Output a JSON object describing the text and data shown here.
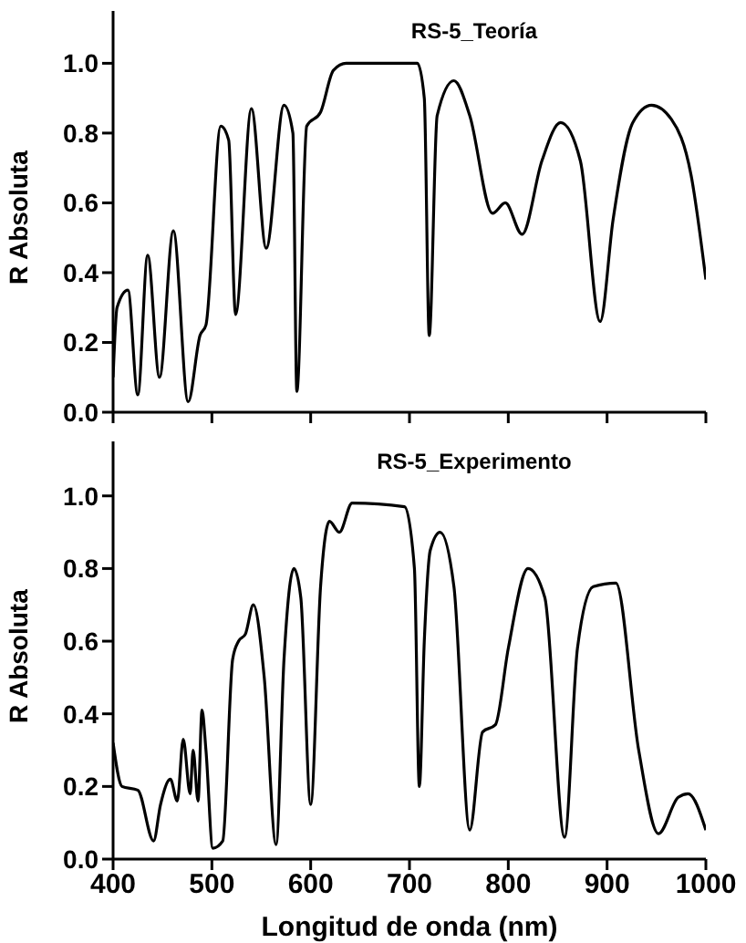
{
  "chart_data": [
    {
      "type": "line",
      "title": "RS-5_Teoría",
      "ylabel": "R Absoluta",
      "xlim": [
        400,
        1000
      ],
      "xticks": [
        400,
        500,
        600,
        700,
        800,
        900,
        1000
      ],
      "ylim": [
        0,
        1.15
      ],
      "yticks": [
        {
          "value": 0,
          "label": "0.0"
        },
        {
          "value": 0.2,
          "label": "0.2"
        },
        {
          "value": 0.4,
          "label": "0.4"
        },
        {
          "value": 0.6,
          "label": "0.6"
        },
        {
          "value": 0.8,
          "label": "0.8"
        },
        {
          "value": 1,
          "label": "1.0"
        }
      ],
      "tick_labels": "y",
      "grid": false,
      "legend": false,
      "marker": "none",
      "line_style": "solid",
      "series": [
        {
          "color": "#000000",
          "x": [
            400,
            404,
            415,
            425,
            435,
            447,
            461,
            476,
            488,
            494,
            509,
            517,
            524,
            540,
            555,
            573,
            582,
            586,
            596,
            610,
            623,
            636,
            708,
            715,
            720,
            728,
            745,
            761,
            784,
            797,
            814,
            834,
            853,
            873,
            893,
            906,
            926,
            945,
            965,
            985,
            1000
          ],
          "values": [
            0.1,
            0.3,
            0.35,
            0.05,
            0.45,
            0.1,
            0.52,
            0.03,
            0.22,
            0.25,
            0.82,
            0.78,
            0.28,
            0.87,
            0.47,
            0.88,
            0.8,
            0.06,
            0.82,
            0.86,
            0.98,
            1.0,
            1.0,
            0.9,
            0.22,
            0.85,
            0.95,
            0.85,
            0.57,
            0.6,
            0.51,
            0.72,
            0.83,
            0.72,
            0.26,
            0.55,
            0.83,
            0.88,
            0.84,
            0.68,
            0.38
          ]
        }
      ]
    },
    {
      "type": "line",
      "title": "RS-5_Experimento",
      "xlabel": "Longitud de onda (nm)",
      "ylabel": "R Absoluta",
      "xlim": [
        400,
        1000
      ],
      "xticks": [
        400,
        500,
        600,
        700,
        800,
        900,
        1000
      ],
      "ylim": [
        0,
        1.15
      ],
      "yticks": [
        {
          "value": 0,
          "label": "0.0"
        },
        {
          "value": 0.2,
          "label": "0.2"
        },
        {
          "value": 0.4,
          "label": "0.4"
        },
        {
          "value": 0.6,
          "label": "0.6"
        },
        {
          "value": 0.8,
          "label": "0.8"
        },
        {
          "value": 1,
          "label": "1.0"
        }
      ],
      "grid": false,
      "legend": false,
      "marker": "none",
      "line_style": "solid",
      "series": [
        {
          "color": "#000000",
          "x": [
            400,
            409,
            425,
            441,
            448,
            458,
            465,
            471,
            478,
            481,
            486,
            490,
            494,
            501,
            511,
            521,
            527,
            534,
            542,
            553,
            565,
            573,
            583,
            590,
            600,
            610,
            619,
            629,
            642,
            695,
            705,
            710,
            715,
            721,
            731,
            745,
            761,
            774,
            787,
            800,
            820,
            837,
            857,
            870,
            886,
            909,
            932,
            952,
            972,
            982,
            1000
          ],
          "values": [
            0.32,
            0.2,
            0.19,
            0.05,
            0.15,
            0.22,
            0.16,
            0.33,
            0.18,
            0.3,
            0.16,
            0.41,
            0.3,
            0.03,
            0.05,
            0.55,
            0.6,
            0.62,
            0.7,
            0.5,
            0.04,
            0.55,
            0.8,
            0.72,
            0.15,
            0.75,
            0.93,
            0.9,
            0.98,
            0.97,
            0.8,
            0.2,
            0.6,
            0.85,
            0.9,
            0.75,
            0.08,
            0.35,
            0.37,
            0.58,
            0.8,
            0.72,
            0.06,
            0.58,
            0.75,
            0.76,
            0.3,
            0.07,
            0.17,
            0.18,
            0.08
          ]
        }
      ]
    }
  ]
}
